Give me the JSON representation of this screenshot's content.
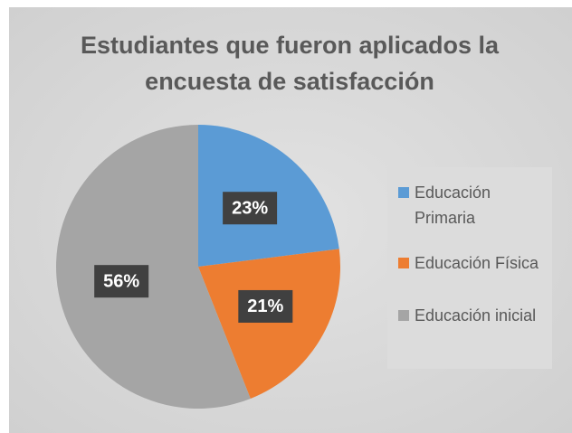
{
  "chart_data": {
    "type": "pie",
    "title": "Estudiantes que fueron aplicados la encuesta de satisfacción",
    "categories": [
      "Educación Primaria",
      "Educación Física",
      "Educación inicial"
    ],
    "values": [
      23,
      21,
      56
    ],
    "value_labels": [
      "23%",
      "21%",
      "56%"
    ],
    "colors": [
      "#5b9bd5",
      "#ed7d31",
      "#a5a5a5"
    ],
    "legend": "right"
  }
}
